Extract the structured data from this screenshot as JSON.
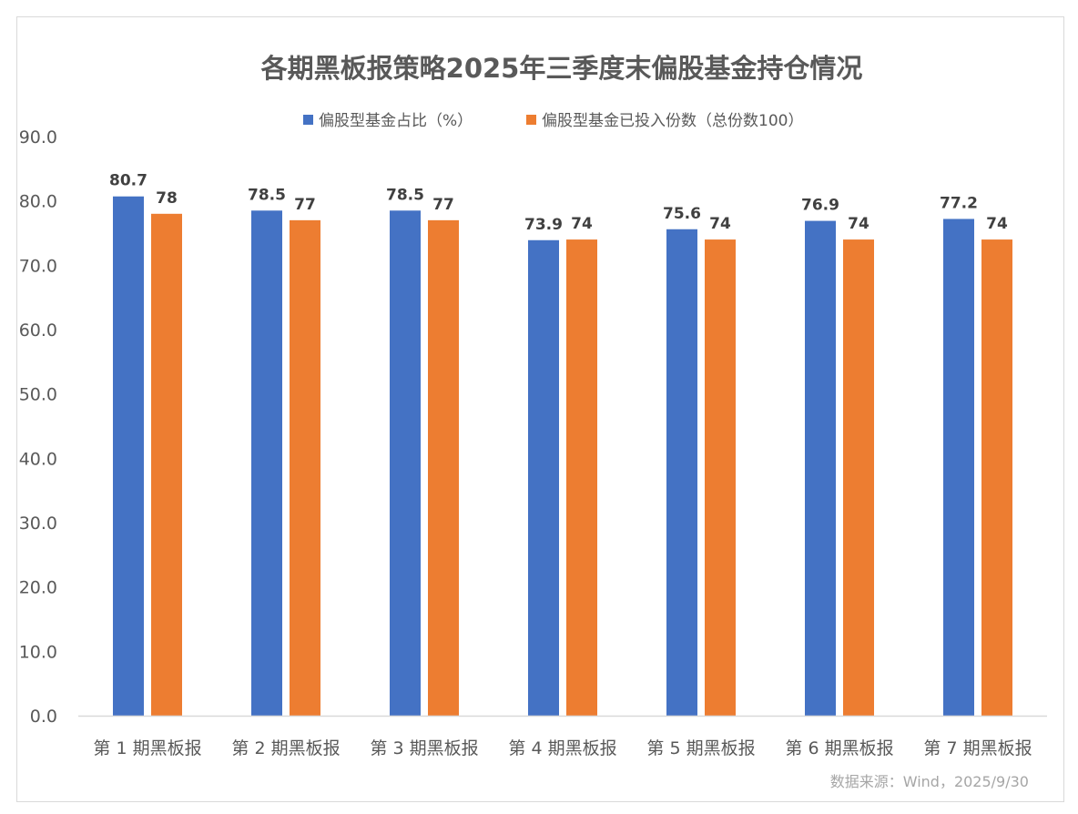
{
  "chart_data": {
    "type": "bar",
    "title": "各期黑板报策略2025年三季度末偏股基金持仓情况",
    "categories": [
      "第 1 期黑板报",
      "第 2 期黑板报",
      "第 3 期黑板报",
      "第 4 期黑板报",
      "第 5 期黑板报",
      "第 6 期黑板报",
      "第 7 期黑板报"
    ],
    "series": [
      {
        "name": "偏股型基金占比（%）",
        "color": "#4472c4",
        "values": [
          80.7,
          78.5,
          78.5,
          73.9,
          75.6,
          76.9,
          77.2
        ],
        "labels": [
          "80.7",
          "78.5",
          "78.5",
          "73.9",
          "75.6",
          "76.9",
          "77.2"
        ]
      },
      {
        "name": "偏股型基金已投入份数（总份数100）",
        "color": "#ed7d31",
        "values": [
          78,
          77,
          77,
          74,
          74,
          74,
          74
        ],
        "labels": [
          "78",
          "77",
          "77",
          "74",
          "74",
          "74",
          "74"
        ]
      }
    ],
    "ylim": [
      0,
      90
    ],
    "yticks": [
      "0.0",
      "10.0",
      "20.0",
      "30.0",
      "40.0",
      "50.0",
      "60.0",
      "70.0",
      "80.0",
      "90.0"
    ],
    "xlabel": "",
    "ylabel": "",
    "grid": false,
    "legend_position": "top",
    "source": "数据来源：Wind，2025/9/30"
  }
}
